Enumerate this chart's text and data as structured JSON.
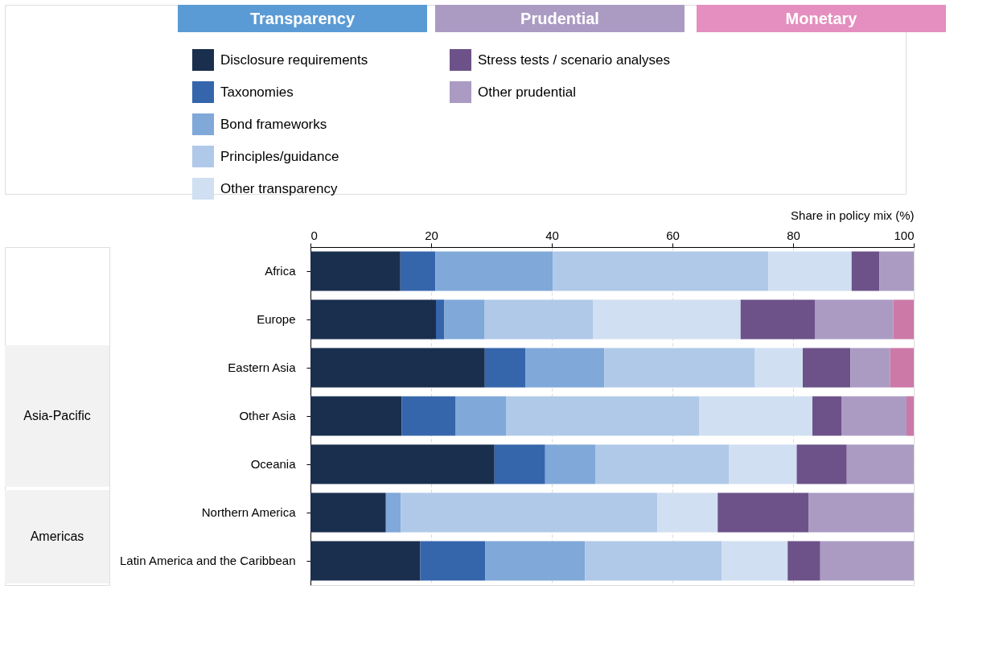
{
  "chart_data": {
    "type": "bar",
    "orientation": "horizontal",
    "stacked": true,
    "xlabel": "Share in policy mix (%)",
    "categories": [
      "Africa",
      "Europe",
      "Eastern Asia",
      "Other Asia",
      "Oceania",
      "Northern America",
      "Latin America and the Caribbean"
    ],
    "series": [
      {
        "name": "Disclosure requirements",
        "color": "#1a2f4e",
        "values": [
          14.9,
          20.8,
          28.9,
          15.1,
          30.5,
          12.5,
          18.2
        ]
      },
      {
        "name": "Taxonomies",
        "color": "#3566ac",
        "values": [
          5.8,
          1.4,
          6.7,
          8.9,
          8.4,
          0,
          10.8
        ]
      },
      {
        "name": "Bond frameworks",
        "color": "#80a8d9",
        "values": [
          19.5,
          6.6,
          13.1,
          8.4,
          8.3,
          2.5,
          16.5
        ]
      },
      {
        "name": "Principles/guidance",
        "color": "#b0c9e8",
        "values": [
          35.7,
          18.0,
          24.9,
          32.0,
          22.2,
          42.5,
          22.7
        ]
      },
      {
        "name": "Other transparency",
        "color": "#d0dff1",
        "values": [
          13.8,
          24.5,
          8.0,
          18.8,
          11.2,
          10.0,
          10.9
        ]
      },
      {
        "name": "Stress tests / scenario analyses",
        "color": "#6d5289",
        "values": [
          4.6,
          12.3,
          7.9,
          4.8,
          8.3,
          15.1,
          5.4
        ]
      },
      {
        "name": "Other prudential",
        "color": "#ab9bc3",
        "values": [
          5.7,
          13.0,
          6.6,
          10.8,
          11.1,
          17.4,
          15.5
        ]
      },
      {
        "color": "#cc79a7",
        "values": [
          0,
          3.4,
          3.9,
          1.2,
          0,
          0,
          0
        ]
      }
    ],
    "xlim": [
      0,
      100
    ],
    "xticks": [
      0,
      20,
      40,
      60,
      80,
      100
    ],
    "grid": "x",
    "legend": "top",
    "annotations": [
      "Transparency",
      "Prudential",
      "Monetary",
      "Asia-Pacific",
      "Americas"
    ]
  }
}
